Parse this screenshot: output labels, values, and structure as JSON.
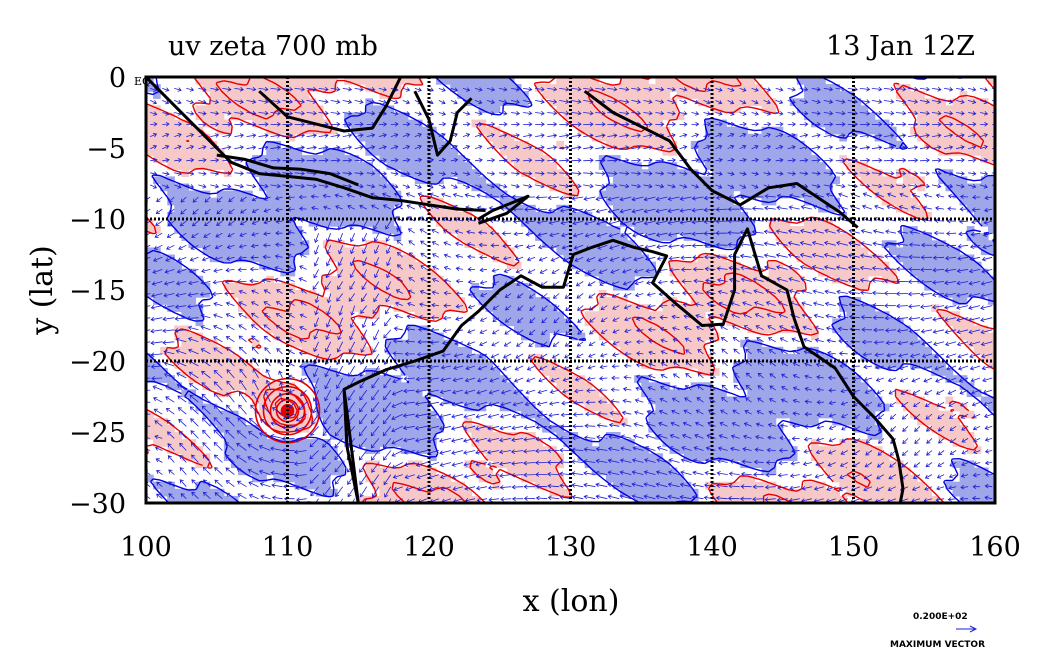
{
  "title_left": "uv zeta 700 mb",
  "title_right": "13 Jan 12Z",
  "xlabel": "x (lon)",
  "ylabel": "y (lat)",
  "eq_label": "EQ",
  "x_ticks": [
    "100",
    "110",
    "120",
    "130",
    "140",
    "150",
    "160"
  ],
  "y_ticks": [
    "0",
    "−5",
    "−10",
    "−15",
    "−20",
    "−25",
    "−30"
  ],
  "vector_legend": {
    "value": "0.200E+02",
    "label": "MAXIMUM VECTOR"
  },
  "colors": {
    "positive_fill": "#f7c8c8",
    "negative_fill": "#9fa6ea",
    "positive_contour": "#e60000",
    "negative_contour": "#0000e6",
    "vectors": "#1f1fd6",
    "coast": "#000000",
    "grid": "#000000"
  },
  "map_data": {
    "type": "vector_field_with_shaded_contours",
    "variables": [
      "u",
      "v",
      "zeta"
    ],
    "level": "700 mb",
    "xlim": [
      100,
      160
    ],
    "ylim": [
      -30,
      0
    ],
    "grid_lon": [
      110,
      120,
      130,
      140,
      150
    ],
    "grid_lat": [
      -10,
      -20
    ],
    "cyclone_center": {
      "lon": 110,
      "lat": -23.5
    },
    "coastlines": [
      {
        "name": "sumatra-java",
        "points": [
          [
            100,
            0
          ],
          [
            102,
            -2
          ],
          [
            104,
            -4
          ],
          [
            106,
            -6
          ],
          [
            108,
            -6.8
          ],
          [
            110,
            -7
          ],
          [
            112,
            -7.2
          ],
          [
            114,
            -7.8
          ],
          [
            116,
            -8.5
          ],
          [
            118,
            -8.7
          ],
          [
            120,
            -9
          ],
          [
            122,
            -9.3
          ],
          [
            124,
            -9.4
          ]
        ]
      },
      {
        "name": "java-north",
        "points": [
          [
            105,
            -5.5
          ],
          [
            107,
            -5.8
          ],
          [
            109,
            -6.4
          ],
          [
            111,
            -6.5
          ],
          [
            113,
            -6.8
          ],
          [
            115,
            -7.6
          ]
        ]
      },
      {
        "name": "borneo-south",
        "points": [
          [
            108,
            -1
          ],
          [
            110,
            -2.8
          ],
          [
            112,
            -3.3
          ],
          [
            114,
            -3.8
          ],
          [
            116,
            -3.6
          ],
          [
            117,
            -2
          ],
          [
            118,
            0
          ]
        ]
      },
      {
        "name": "sulawesi",
        "points": [
          [
            119,
            -1
          ],
          [
            120,
            -3
          ],
          [
            120.6,
            -5.5
          ],
          [
            121.5,
            -4.5
          ],
          [
            122,
            -2.5
          ],
          [
            123,
            -1.5
          ]
        ]
      },
      {
        "name": "timor",
        "points": [
          [
            123.5,
            -10
          ],
          [
            124.5,
            -9.4
          ],
          [
            126,
            -8.8
          ],
          [
            127,
            -8.4
          ],
          [
            125.5,
            -9.6
          ],
          [
            123.5,
            -10.3
          ]
        ]
      },
      {
        "name": "new-guinea",
        "points": [
          [
            131,
            -1
          ],
          [
            133,
            -2.5
          ],
          [
            135,
            -3.5
          ],
          [
            137,
            -4.5
          ],
          [
            138.5,
            -6.5
          ],
          [
            140,
            -8
          ],
          [
            142,
            -9
          ],
          [
            144,
            -7.8
          ],
          [
            146,
            -7.5
          ],
          [
            147.5,
            -8.5
          ],
          [
            149,
            -9.5
          ],
          [
            150.3,
            -10.6
          ]
        ]
      },
      {
        "name": "australia",
        "points": [
          [
            114,
            -22
          ],
          [
            114.2,
            -26
          ],
          [
            114.5,
            -27.5
          ],
          [
            115,
            -30
          ],
          [
            114,
            -22
          ],
          [
            115,
            -21.5
          ],
          [
            117,
            -20.6
          ],
          [
            119,
            -20
          ],
          [
            121,
            -19.3
          ],
          [
            122.3,
            -17.5
          ],
          [
            123.5,
            -16.5
          ],
          [
            125,
            -15
          ],
          [
            126.5,
            -14
          ],
          [
            128,
            -14.8
          ],
          [
            129.5,
            -14.8
          ],
          [
            130.2,
            -12.5
          ],
          [
            131.5,
            -12
          ],
          [
            133,
            -11.5
          ],
          [
            134.5,
            -12
          ],
          [
            135.8,
            -12.3
          ],
          [
            136.8,
            -12.6
          ],
          [
            135.8,
            -14.5
          ],
          [
            137.5,
            -16
          ],
          [
            139.3,
            -17.5
          ],
          [
            140.8,
            -17.4
          ],
          [
            141.6,
            -15
          ],
          [
            141.6,
            -12.5
          ],
          [
            142.5,
            -10.7
          ],
          [
            143.5,
            -14
          ],
          [
            145.3,
            -15
          ],
          [
            145.8,
            -17
          ],
          [
            146.5,
            -19
          ],
          [
            148.7,
            -20.5
          ],
          [
            150,
            -22.5
          ],
          [
            151.5,
            -24
          ],
          [
            152.8,
            -25.5
          ],
          [
            153.2,
            -27
          ],
          [
            153.5,
            -29
          ],
          [
            153.3,
            -30
          ]
        ]
      }
    ],
    "vector_magnitude_reference": 20
  }
}
